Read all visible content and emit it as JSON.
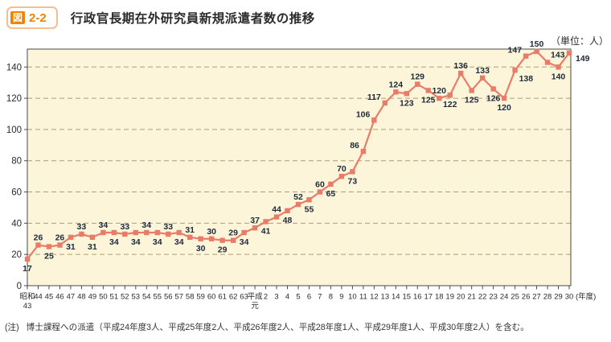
{
  "figure": {
    "badge_icon_text": "図",
    "badge_number": "2-2",
    "title": "行政官長期在外研究員新規派遣者数の推移",
    "unit_label": "（単位：人）",
    "note_label": "(注)",
    "note_text": "博士課程への派遣（平成24年度3人、平成25年度2人、平成26年度2人、平成28年度1人、平成29年度1人、平成30年度2人）を含む。"
  },
  "colors": {
    "accent_orange": "#F08300",
    "badge_border": "#F6BE8E",
    "line": "#E87C69",
    "plot_background": "#FCF5DA",
    "gridline": "#AE9D78",
    "axis": "#4A4A4A",
    "data_label": "#1E2A3A"
  },
  "chart_data": {
    "type": "line",
    "title": "行政官長期在外研究員新規派遣者数の推移",
    "unit": "人",
    "x_axis_suffix": "(年度)",
    "ylim": [
      0,
      152
    ],
    "yticks": [
      0,
      20,
      40,
      60,
      80,
      100,
      120,
      140
    ],
    "grid": "dashed-horizontal",
    "marker": "square",
    "legend": "none",
    "categories": [
      "昭和43",
      "44",
      "45",
      "46",
      "47",
      "48",
      "49",
      "50",
      "51",
      "52",
      "53",
      "54",
      "55",
      "56",
      "57",
      "58",
      "59",
      "60",
      "61",
      "62",
      "63",
      "平成元",
      "2",
      "3",
      "4",
      "5",
      "6",
      "7",
      "8",
      "9",
      "10",
      "11",
      "12",
      "13",
      "14",
      "15",
      "16",
      "17",
      "18",
      "19",
      "20",
      "21",
      "22",
      "23",
      "24",
      "25",
      "26",
      "27",
      "28",
      "29",
      "30"
    ],
    "values": [
      17,
      26,
      25,
      26,
      31,
      33,
      31,
      34,
      34,
      33,
      34,
      34,
      34,
      33,
      34,
      31,
      30,
      30,
      29,
      29,
      34,
      37,
      41,
      44,
      48,
      52,
      55,
      60,
      65,
      70,
      73,
      86,
      106,
      117,
      124,
      123,
      129,
      125,
      120,
      122,
      136,
      125,
      133,
      126,
      120,
      138,
      147,
      150,
      143,
      140,
      149
    ],
    "label_positions": [
      "b",
      "a",
      "b",
      "a",
      "b",
      "a",
      "b",
      "a",
      "b",
      "a",
      "b",
      "a",
      "b",
      "a",
      "b",
      "a",
      "b",
      "a",
      "b",
      "a",
      "b",
      "a",
      "b",
      "a",
      "b",
      "a",
      "b",
      "a",
      "b",
      "a",
      "b",
      "al",
      "al",
      "al",
      "a",
      "b",
      "a",
      "b",
      "a",
      "b",
      "a",
      "b",
      "a",
      "b",
      "b",
      "br",
      "al",
      "a",
      "ar",
      "b",
      "r"
    ]
  }
}
